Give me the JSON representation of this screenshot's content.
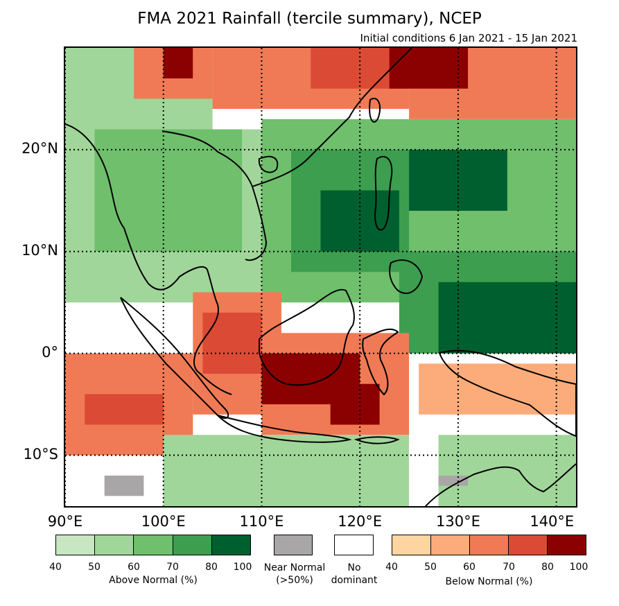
{
  "title": "FMA 2021 Rainfall (tercile summary), NCEP",
  "subtitle": "Initial conditions 6 Jan 2021 - 15 Jan 2021",
  "latitude_labels": [
    "20°N",
    "10°N",
    "0°",
    "10°S"
  ],
  "longitude_labels": [
    "90°E",
    "100°E",
    "110°E",
    "120°E",
    "130°E",
    "140°E"
  ],
  "colors": {
    "above": [
      "#c7e6c1",
      "#a1d69a",
      "#6fbf6c",
      "#3d9e50",
      "#005f2f"
    ],
    "below": [
      "#fdd5a0",
      "#fcac7a",
      "#f07a55",
      "#db4a35",
      "#8b0000"
    ],
    "near": "#a8a6a6",
    "none": "#ffffff"
  },
  "legend": {
    "above": {
      "label": "Above Normal (%)",
      "ticks": [
        "40",
        "50",
        "60",
        "70",
        "80",
        "100"
      ]
    },
    "near": {
      "label_line1": "Near Normal",
      "label_line2": "(>50%)"
    },
    "none": {
      "label_line1": "No",
      "label_line2": "dominant"
    },
    "below": {
      "label": "Below Normal (%)",
      "ticks": [
        "40",
        "50",
        "60",
        "70",
        "80",
        "100"
      ]
    }
  },
  "map_data": {
    "lon_range": [
      90,
      142
    ],
    "lat_range": [
      -15,
      30
    ],
    "regions": [
      {
        "lon": [
          90,
          105
        ],
        "lat": [
          22,
          30
        ],
        "category": "above",
        "level": 1
      },
      {
        "lon": [
          97,
          105
        ],
        "lat": [
          25,
          30
        ],
        "category": "below",
        "level": 2
      },
      {
        "lon": [
          100,
          103
        ],
        "lat": [
          27,
          30
        ],
        "category": "below",
        "level": 4
      },
      {
        "lon": [
          105,
          125
        ],
        "lat": [
          24,
          30
        ],
        "category": "below",
        "level": 2
      },
      {
        "lon": [
          115,
          125
        ],
        "lat": [
          26,
          30
        ],
        "category": "below",
        "level": 3
      },
      {
        "lon": [
          125,
          142
        ],
        "lat": [
          23,
          30
        ],
        "category": "below",
        "level": 2
      },
      {
        "lon": [
          123,
          131
        ],
        "lat": [
          26,
          30
        ],
        "category": "below",
        "level": 4
      },
      {
        "lon": [
          90,
          110
        ],
        "lat": [
          5,
          22
        ],
        "category": "above",
        "level": 1
      },
      {
        "lon": [
          93,
          108
        ],
        "lat": [
          10,
          22
        ],
        "category": "above",
        "level": 2
      },
      {
        "lon": [
          110,
          142
        ],
        "lat": [
          5,
          23
        ],
        "category": "above",
        "level": 2
      },
      {
        "lon": [
          113,
          125
        ],
        "lat": [
          8,
          20
        ],
        "category": "above",
        "level": 3
      },
      {
        "lon": [
          116,
          124
        ],
        "lat": [
          10,
          16
        ],
        "category": "above",
        "level": 4
      },
      {
        "lon": [
          125,
          135
        ],
        "lat": [
          14,
          20
        ],
        "category": "above",
        "level": 4
      },
      {
        "lon": [
          124,
          142
        ],
        "lat": [
          0,
          10
        ],
        "category": "above",
        "level": 3
      },
      {
        "lon": [
          128,
          142
        ],
        "lat": [
          0,
          7
        ],
        "category": "above",
        "level": 4
      },
      {
        "lon": [
          90,
          103
        ],
        "lat": [
          -10,
          0
        ],
        "category": "below",
        "level": 2
      },
      {
        "lon": [
          92,
          100
        ],
        "lat": [
          -7,
          -4
        ],
        "category": "below",
        "level": 3
      },
      {
        "lon": [
          103,
          112
        ],
        "lat": [
          -6,
          6
        ],
        "category": "below",
        "level": 2
      },
      {
        "lon": [
          104,
          110
        ],
        "lat": [
          -2,
          4
        ],
        "category": "below",
        "level": 3
      },
      {
        "lon": [
          110,
          125
        ],
        "lat": [
          -8,
          2
        ],
        "category": "below",
        "level": 2
      },
      {
        "lon": [
          110,
          120
        ],
        "lat": [
          -5,
          0
        ],
        "category": "below",
        "level": 4
      },
      {
        "lon": [
          117,
          122
        ],
        "lat": [
          -7,
          -3
        ],
        "category": "below",
        "level": 4
      },
      {
        "lon": [
          126,
          142
        ],
        "lat": [
          -6,
          -1
        ],
        "category": "below",
        "level": 1
      },
      {
        "lon": [
          100,
          125
        ],
        "lat": [
          -15,
          -8
        ],
        "category": "above",
        "level": 1
      },
      {
        "lon": [
          128,
          142
        ],
        "lat": [
          -15,
          -8
        ],
        "category": "above",
        "level": 1
      },
      {
        "lon": [
          94,
          98
        ],
        "lat": [
          -14,
          -12
        ],
        "category": "near",
        "level": 0
      },
      {
        "lon": [
          128,
          131
        ],
        "lat": [
          -13,
          -12
        ],
        "category": "near",
        "level": 0
      }
    ]
  }
}
